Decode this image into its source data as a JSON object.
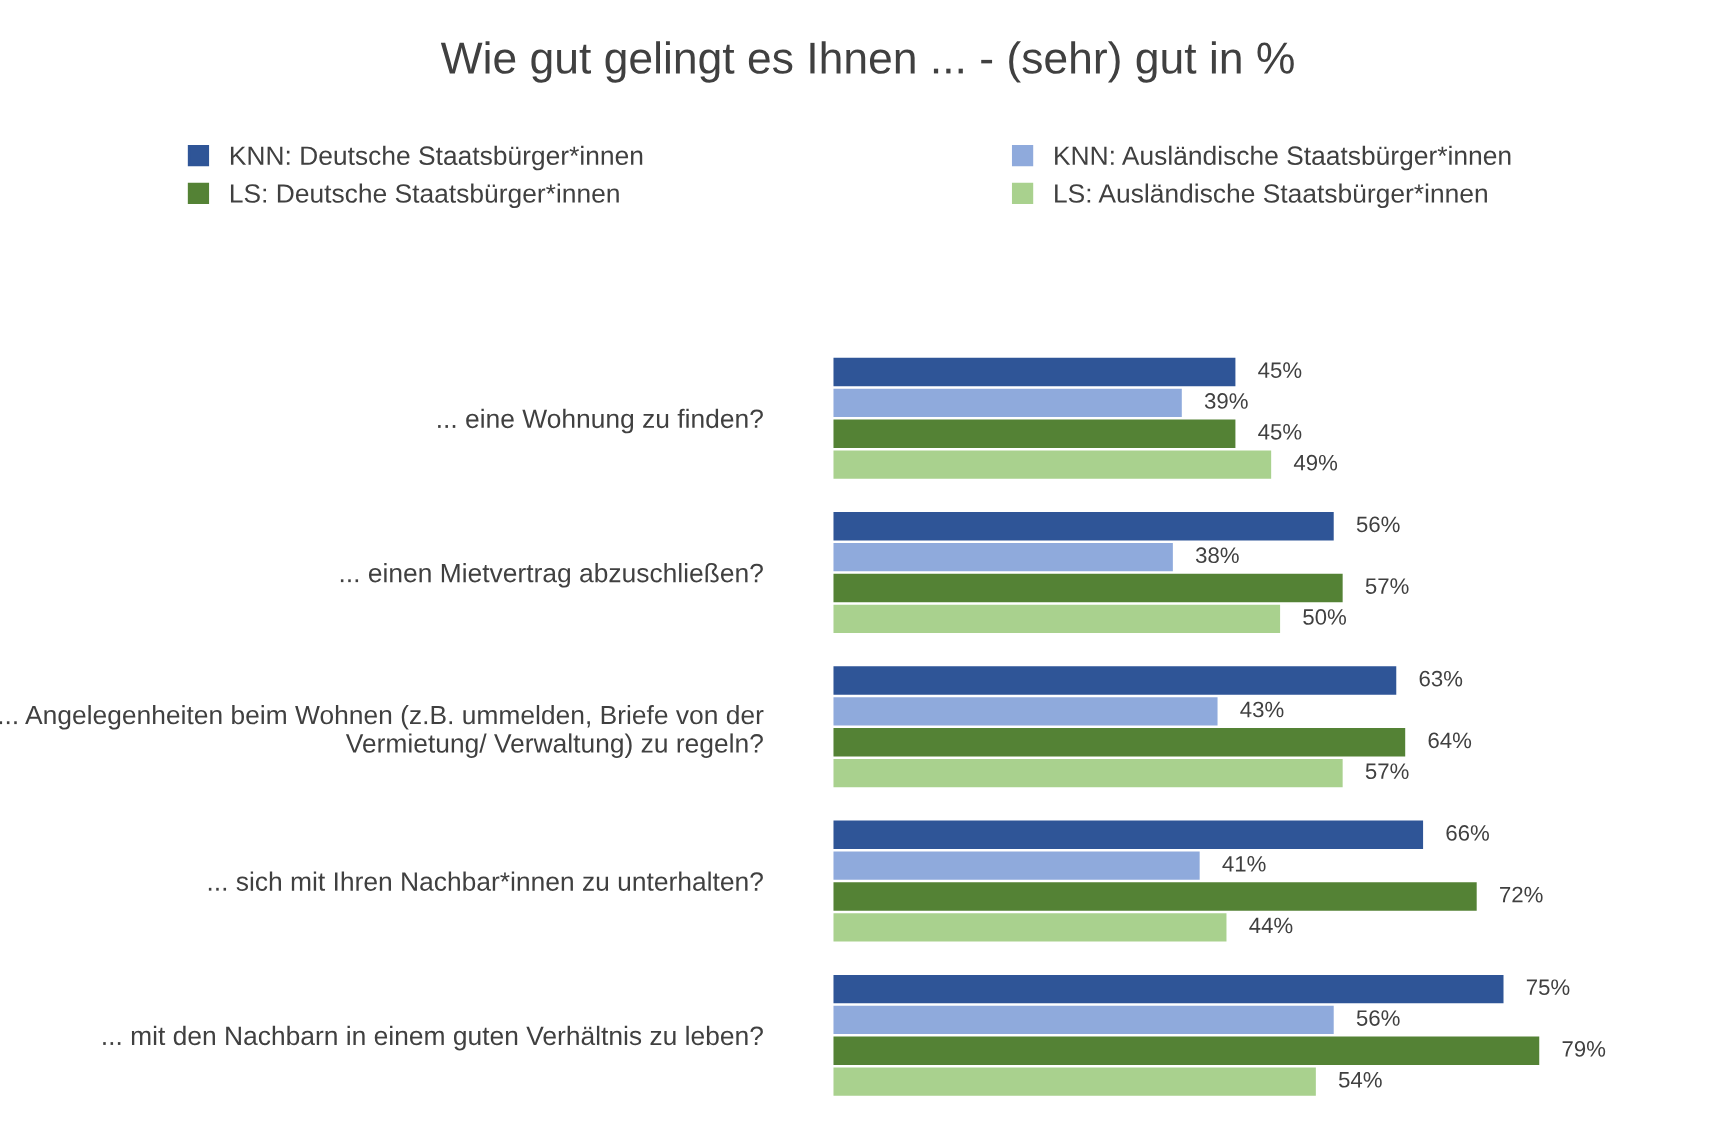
{
  "chart_data": {
    "type": "bar",
    "orientation": "horizontal",
    "title": "Wie gut gelingt es Ihnen ... - (sehr) gut in %",
    "categories": [
      "... eine Wohnung zu finden?",
      "... einen Mietvertrag abzuschließen?",
      "... Angelegenheiten beim Wohnen (z.B. ummelden, Briefe von der\nVermietung/ Verwaltung) zu regeln?",
      "... sich mit Ihren Nachbar*innen zu unterhalten?",
      "... mit den Nachbarn in einem guten Verhältnis zu leben?"
    ],
    "series": [
      {
        "name": "KNN: Deutsche Staatsbürger*innen",
        "color": "#2f5597",
        "values": [
          45,
          56,
          63,
          66,
          75
        ],
        "value_labels": [
          "45%",
          "56%",
          "63%",
          "66%",
          "75%"
        ]
      },
      {
        "name": "KNN: Ausländische Staatsbürger*innen",
        "color": "#8faadc",
        "values": [
          39,
          38,
          43,
          41,
          56
        ],
        "value_labels": [
          "39%",
          "38%",
          "43%",
          "41%",
          "56%"
        ]
      },
      {
        "name": "LS: Deutsche Staatsbürger*innen",
        "color": "#548235",
        "values": [
          45,
          57,
          64,
          72,
          79
        ],
        "value_labels": [
          "45%",
          "57%",
          "64%",
          "72%",
          "79%"
        ]
      },
      {
        "name": "LS: Ausländische Staatsbürger*innen",
        "color": "#a9d18e",
        "values": [
          49,
          50,
          57,
          44,
          54
        ],
        "value_labels": [
          "49%",
          "50%",
          "57%",
          "44%",
          "54%"
        ]
      }
    ],
    "tick_labels": "y",
    "grid": false,
    "legend": "top"
  }
}
